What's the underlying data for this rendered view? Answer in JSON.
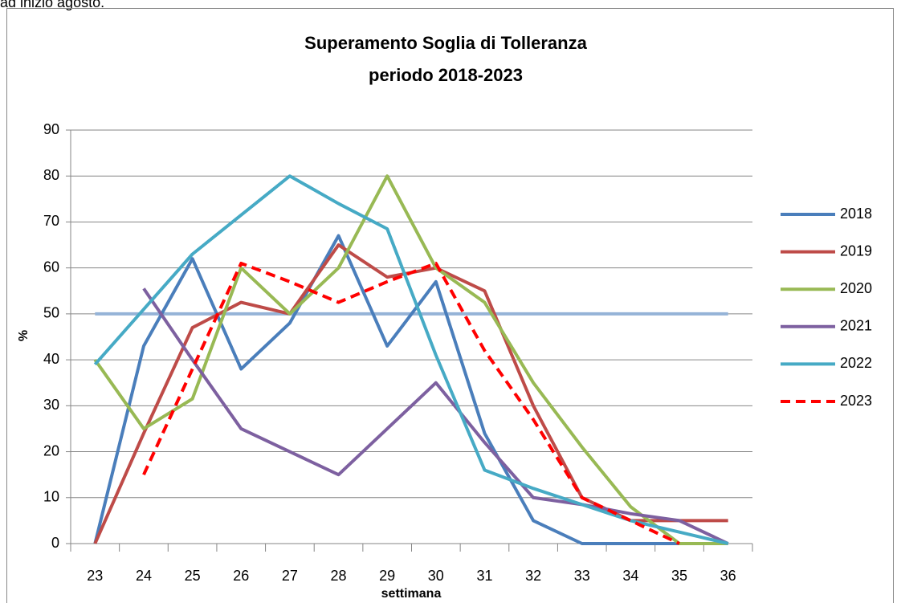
{
  "top_text": "ad inizio agosto.",
  "chart_data": {
    "type": "line",
    "title": "Superamento Soglia di Tolleranza",
    "subtitle": "periodo 2018-2023",
    "x_label": "settimana",
    "y_label": "%",
    "categories": [
      "23",
      "24",
      "25",
      "26",
      "27",
      "28",
      "29",
      "30",
      "31",
      "32",
      "33",
      "34",
      "35",
      "36"
    ],
    "ylim": [
      0,
      90
    ],
    "yticks": [
      0,
      10,
      20,
      30,
      40,
      50,
      60,
      70,
      80,
      90
    ],
    "grid": true,
    "legend": "right",
    "reference_line": {
      "value": 50,
      "color": "#95b3d7"
    },
    "series": [
      {
        "name": "2018",
        "color": "#4a7ebb",
        "style": "solid",
        "values": [
          0,
          43,
          62,
          38,
          48,
          67,
          43,
          57,
          24,
          5,
          0,
          0,
          0,
          0
        ]
      },
      {
        "name": "2019",
        "color": "#be4b48",
        "style": "solid",
        "values": [
          0,
          24,
          47,
          52.5,
          50,
          65,
          58,
          60,
          55,
          30,
          10,
          5,
          5,
          5
        ]
      },
      {
        "name": "2020",
        "color": "#98b954",
        "style": "solid",
        "values": [
          40,
          25,
          31.5,
          60,
          50,
          60,
          80,
          60,
          52.5,
          35,
          21,
          8,
          0,
          0
        ]
      },
      {
        "name": "2021",
        "color": "#7d60a0",
        "style": "solid",
        "values": [
          null,
          55.5,
          40,
          25,
          20,
          15,
          25,
          35,
          22,
          10,
          8.5,
          6.5,
          5,
          0
        ]
      },
      {
        "name": "2022",
        "color": "#46aac5",
        "style": "solid",
        "values": [
          39,
          51,
          63,
          71.5,
          80,
          74,
          68.5,
          41,
          16,
          12,
          8.5,
          5,
          2.5,
          0
        ]
      },
      {
        "name": "2023",
        "color": "#ff0000",
        "style": "dashed",
        "values": [
          null,
          15,
          38,
          61,
          57,
          52.5,
          57,
          61,
          42,
          27,
          10,
          5,
          0,
          null
        ]
      }
    ]
  }
}
